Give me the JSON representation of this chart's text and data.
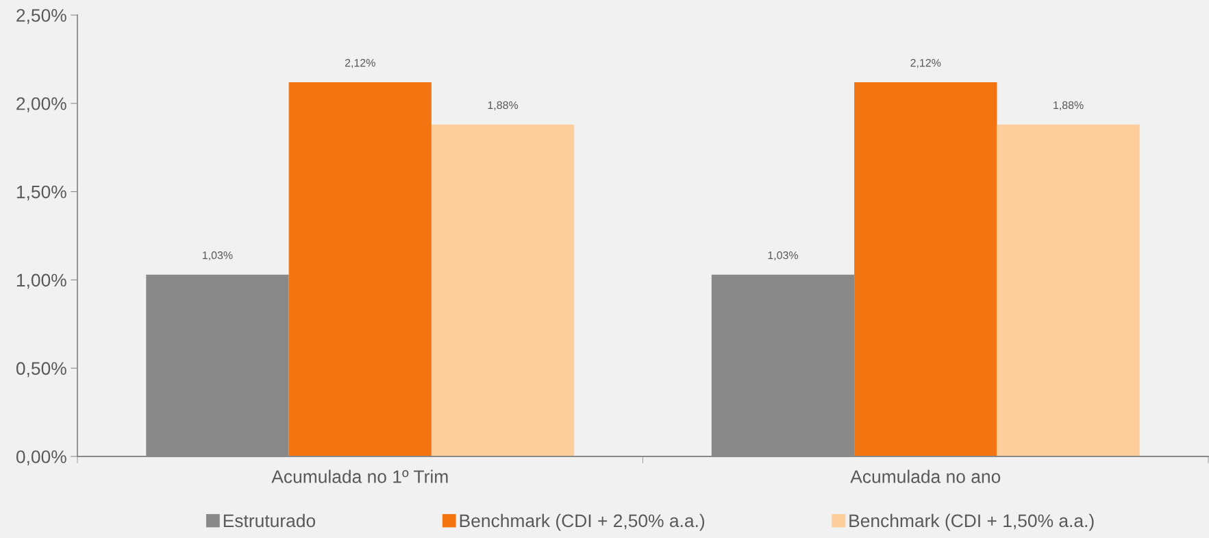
{
  "chart_data": {
    "type": "bar",
    "categories": [
      "Acumulada no 1º Trim",
      "Acumulada no ano"
    ],
    "series": [
      {
        "name": "Estruturado",
        "color": "#898989",
        "values": [
          1.03,
          1.03
        ],
        "value_labels": [
          "1,03%",
          "1,03%"
        ]
      },
      {
        "name": "Benchmark (CDI + 2,50% a.a.)",
        "color": "#f37511",
        "values": [
          2.12,
          2.12
        ],
        "value_labels": [
          "2,12%",
          "2,12%"
        ]
      },
      {
        "name": "Benchmark (CDI + 1,50% a.a.)",
        "color": "#fecd9c",
        "values": [
          1.88,
          1.88
        ],
        "value_labels": [
          "1,88%",
          "1,88%"
        ]
      }
    ],
    "ylim": [
      0,
      2.5
    ],
    "yticks": [
      {
        "value": 0,
        "label": "0,00%"
      },
      {
        "value": 0.5,
        "label": "0,50%"
      },
      {
        "value": 1.0,
        "label": "1,00%"
      },
      {
        "value": 1.5,
        "label": "1,50%"
      },
      {
        "value": 2.0,
        "label": "2,00%"
      },
      {
        "value": 2.5,
        "label": "2,50%"
      }
    ],
    "legend": "bottom"
  }
}
